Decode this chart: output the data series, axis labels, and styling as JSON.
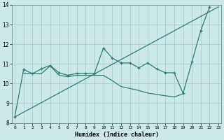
{
  "xlabel": "Humidex (Indice chaleur)",
  "bg_color": "#cce8e8",
  "line_color": "#2e7d6e",
  "grid_color": "#99cccc",
  "x": [
    0,
    1,
    2,
    3,
    4,
    5,
    6,
    7,
    8,
    9,
    10,
    11,
    12,
    13,
    14,
    15,
    16,
    17,
    18,
    19,
    20,
    21,
    22,
    23
  ],
  "line1_y": [
    8.3,
    10.72,
    10.5,
    10.75,
    10.92,
    10.55,
    10.42,
    10.52,
    10.52,
    10.52,
    11.8,
    11.3,
    11.05,
    11.05,
    10.8,
    11.05,
    10.75,
    10.55,
    10.55,
    9.5,
    11.1,
    12.7,
    13.9,
    null
  ],
  "line2_x": [
    0,
    23
  ],
  "line2_y": [
    8.3,
    13.9
  ],
  "line3_x": [
    1,
    2,
    3,
    4,
    5,
    6,
    7,
    8,
    9,
    10,
    11,
    12,
    13,
    14,
    15,
    16,
    17,
    18,
    19
  ],
  "line3_y": [
    10.52,
    10.5,
    10.5,
    10.9,
    10.42,
    10.35,
    10.42,
    10.42,
    10.42,
    10.42,
    10.15,
    9.85,
    9.75,
    9.65,
    9.52,
    9.45,
    9.38,
    9.32,
    9.48
  ],
  "ylim": [
    8,
    14
  ],
  "xlim": [
    -0.3,
    23.3
  ],
  "yticks": [
    8,
    9,
    10,
    11,
    12,
    13,
    14
  ],
  "xticks": [
    0,
    1,
    2,
    3,
    4,
    5,
    6,
    7,
    8,
    9,
    10,
    11,
    12,
    13,
    14,
    15,
    16,
    17,
    18,
    19,
    20,
    21,
    22,
    23
  ]
}
